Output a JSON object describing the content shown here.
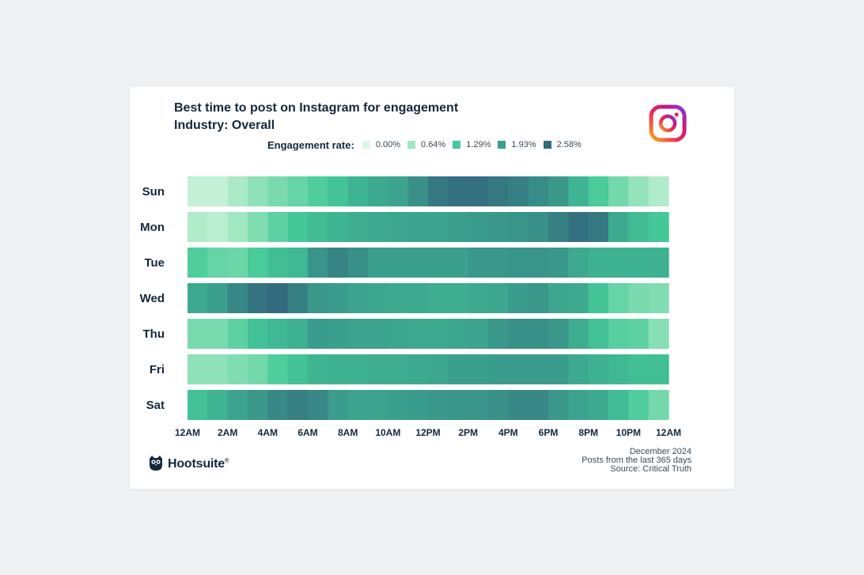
{
  "chart_data": {
    "type": "heatmap",
    "title": "Best time to post on Instagram for engagement",
    "subtitle": "Industry: Overall",
    "legend": {
      "title": "Engagement rate:",
      "entries": [
        {
          "label": "0.00%",
          "color": "#dcf7e6"
        },
        {
          "label": "0.64%",
          "color": "#9de6be"
        },
        {
          "label": "1.29%",
          "color": "#44c998"
        },
        {
          "label": "1.93%",
          "color": "#3a9e8c"
        },
        {
          "label": "2.58%",
          "color": "#33697e"
        }
      ]
    },
    "y_categories": [
      "Sun",
      "Mon",
      "Tue",
      "Wed",
      "Thu",
      "Fri",
      "Sat"
    ],
    "x_ticks": [
      "12AM",
      "2AM",
      "4AM",
      "6AM",
      "8AM",
      "10AM",
      "12PM",
      "2PM",
      "4PM",
      "6PM",
      "8PM",
      "10PM",
      "12AM"
    ],
    "hours_per_row": 24,
    "unit": "engagement rate (%)",
    "values": [
      [
        0.25,
        0.25,
        0.5,
        0.75,
        0.9,
        1.05,
        1.2,
        1.35,
        1.6,
        1.75,
        1.85,
        2.1,
        2.4,
        2.5,
        2.5,
        2.4,
        2.3,
        2.15,
        2.0,
        1.6,
        1.25,
        0.95,
        0.7,
        0.45
      ],
      [
        0.45,
        0.35,
        0.6,
        0.85,
        1.1,
        1.3,
        1.5,
        1.6,
        1.7,
        1.75,
        1.8,
        1.85,
        1.85,
        1.9,
        1.95,
        2.0,
        2.05,
        2.1,
        2.3,
        2.5,
        2.4,
        1.75,
        1.5,
        1.3
      ],
      [
        1.2,
        1.05,
        1.0,
        1.25,
        1.45,
        1.55,
        2.05,
        2.25,
        2.1,
        1.9,
        1.9,
        1.9,
        1.9,
        1.9,
        2.0,
        2.0,
        2.05,
        2.05,
        2.0,
        1.75,
        1.65,
        1.65,
        1.65,
        1.65
      ],
      [
        1.75,
        1.9,
        2.2,
        2.45,
        2.55,
        2.3,
        2.0,
        1.95,
        1.85,
        1.8,
        1.75,
        1.75,
        1.7,
        1.7,
        1.75,
        1.8,
        1.95,
        2.0,
        1.8,
        1.75,
        1.35,
        1.05,
        0.9,
        0.85
      ],
      [
        0.9,
        0.9,
        1.1,
        1.4,
        1.55,
        1.65,
        1.95,
        1.9,
        1.85,
        1.85,
        1.8,
        1.75,
        1.75,
        1.8,
        1.85,
        2.0,
        2.1,
        2.1,
        2.0,
        1.7,
        1.4,
        1.15,
        1.1,
        0.8
      ],
      [
        0.75,
        0.75,
        0.85,
        0.95,
        1.2,
        1.4,
        1.6,
        1.65,
        1.65,
        1.7,
        1.7,
        1.75,
        1.8,
        1.9,
        1.9,
        1.95,
        1.95,
        1.95,
        1.95,
        1.75,
        1.65,
        1.55,
        1.45,
        1.45
      ],
      [
        1.4,
        1.6,
        1.85,
        2.0,
        2.2,
        2.3,
        2.2,
        1.95,
        1.85,
        1.85,
        1.9,
        1.95,
        2.0,
        2.05,
        2.05,
        2.1,
        2.2,
        2.2,
        2.0,
        1.85,
        1.75,
        1.5,
        1.2,
        0.95
      ]
    ],
    "xlabel": "",
    "ylabel": "",
    "grid": false
  },
  "brand": {
    "name": "Hootsuite",
    "registered": "®"
  },
  "footnote": {
    "date": "December 2024",
    "scope": "Posts from the last 365 days",
    "source": "Source: Critical Truth"
  },
  "icons": {
    "instagram": "instagram-icon",
    "hootsuite": "owl-logo-icon"
  }
}
